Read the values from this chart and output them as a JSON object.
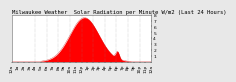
{
  "title": "Milwaukee Weather  Solar Radiation per Minute W/m2 (Last 24 Hours)",
  "bg_color": "#e8e8e8",
  "plot_bg_color": "#ffffff",
  "fill_color": "#ff0000",
  "line_color": "#cc0000",
  "grid_color": "#888888",
  "num_points": 1440,
  "peak_value": 750,
  "peak_hour": 12.5,
  "sigma_hours": 2.5,
  "start_hour": 5.0,
  "end_hour": 20.5,
  "ylim_max": 800,
  "ytick_values": [
    100,
    200,
    300,
    400,
    500,
    600,
    700,
    800
  ],
  "ytick_labels": [
    "1",
    "2",
    "3",
    "4",
    "5",
    "6",
    "7",
    "8"
  ],
  "grid_hours": [
    4,
    6,
    8,
    10,
    12,
    14,
    16,
    18,
    20,
    22
  ],
  "title_fontsize": 4.0,
  "tick_fontsize": 3.2,
  "spike_hour": 18.2,
  "spike_value": 120
}
